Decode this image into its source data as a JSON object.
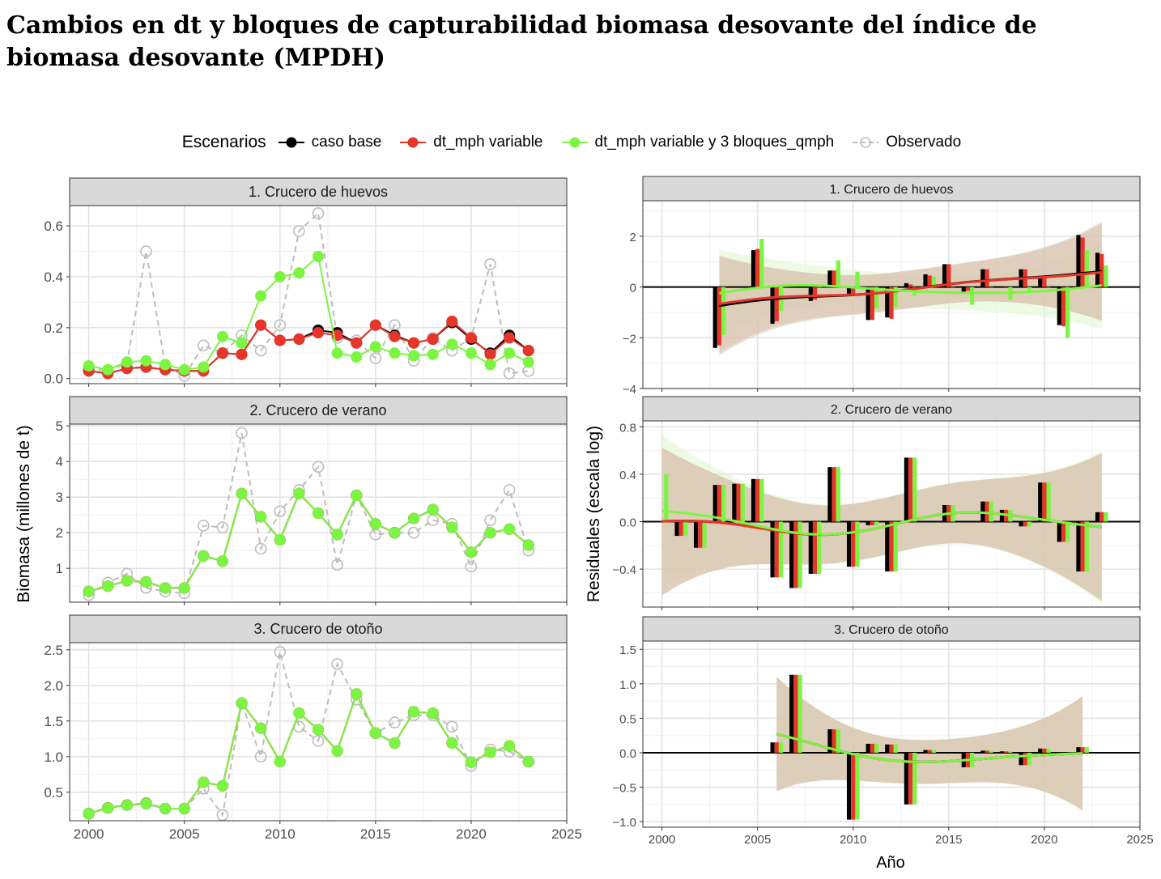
{
  "title": "Cambios en dt y bloques de capturabilidad biomasa desovante del índice de biomasa desovante (MPDH)",
  "legend": {
    "title": "Escenarios",
    "items": [
      {
        "label": "caso base",
        "color": "#000000"
      },
      {
        "label": "dt_mph variable",
        "color": "#e8352a"
      },
      {
        "label": "dt_mph variable y 3 bloques_qmph",
        "color": "#7cf542"
      },
      {
        "label": "Observado",
        "color": "#bdbdbd"
      }
    ]
  },
  "ylabel_left": "Biomasa (millones de t)",
  "ylabel_right": "Residuales (escala log)",
  "xlabel_right": "Año",
  "chart_data": [
    {
      "type": "line",
      "panel": "1. Crucero de huevos",
      "x": [
        2000,
        2001,
        2002,
        2003,
        2004,
        2005,
        2006,
        2007,
        2008,
        2009,
        2010,
        2011,
        2012,
        2013,
        2014,
        2015,
        2016,
        2017,
        2018,
        2019,
        2020,
        2021,
        2022,
        2023
      ],
      "xlim": [
        1999,
        2025
      ],
      "ylim": [
        -0.02,
        0.68
      ],
      "xticks": [
        "2000",
        "2005",
        "2010",
        "2015",
        "2020",
        "2025"
      ],
      "yticks": [
        "0.0",
        "0.2",
        "0.4",
        "0.6"
      ],
      "series": [
        {
          "name": "Observado",
          "values": [
            0.04,
            0.03,
            0.06,
            0.5,
            0.05,
            0.01,
            0.13,
            0.1,
            0.17,
            0.11,
            0.21,
            0.58,
            0.65,
            0.16,
            0.15,
            0.08,
            0.21,
            0.07,
            0.16,
            0.11,
            0.16,
            0.45,
            0.02,
            0.03
          ]
        },
        {
          "name": "caso base",
          "values": [
            0.03,
            0.02,
            0.04,
            0.045,
            0.035,
            0.03,
            0.03,
            0.1,
            0.095,
            0.21,
            0.15,
            0.155,
            0.19,
            0.18,
            0.14,
            0.21,
            0.17,
            0.14,
            0.155,
            0.22,
            0.155,
            0.1,
            0.17,
            0.11
          ]
        },
        {
          "name": "dt_mph variable",
          "values": [
            0.03,
            0.02,
            0.04,
            0.045,
            0.035,
            0.03,
            0.03,
            0.1,
            0.095,
            0.21,
            0.15,
            0.155,
            0.18,
            0.17,
            0.14,
            0.21,
            0.165,
            0.14,
            0.155,
            0.225,
            0.16,
            0.095,
            0.16,
            0.11
          ]
        },
        {
          "name": "dt_mph variable y 3 bloques_qmph",
          "values": [
            0.05,
            0.035,
            0.065,
            0.07,
            0.055,
            0.035,
            0.045,
            0.165,
            0.14,
            0.325,
            0.4,
            0.415,
            0.48,
            0.1,
            0.085,
            0.125,
            0.1,
            0.09,
            0.095,
            0.135,
            0.1,
            0.055,
            0.1,
            0.065
          ]
        }
      ]
    },
    {
      "type": "line",
      "panel": "2. Crucero de verano",
      "x": [
        2000,
        2001,
        2002,
        2003,
        2004,
        2005,
        2006,
        2007,
        2008,
        2009,
        2010,
        2011,
        2012,
        2013,
        2014,
        2015,
        2016,
        2017,
        2018,
        2019,
        2020,
        2021,
        2022,
        2023
      ],
      "xlim": [
        1999,
        2025
      ],
      "ylim": [
        0.05,
        5.05
      ],
      "xticks": [
        "2000",
        "2005",
        "2010",
        "2015",
        "2020",
        "2025"
      ],
      "yticks": [
        "1",
        "2",
        "3",
        "4",
        "5"
      ],
      "series": [
        {
          "name": "Observado",
          "values": [
            0.25,
            0.6,
            0.85,
            0.45,
            0.35,
            0.3,
            2.2,
            2.15,
            4.8,
            1.55,
            2.6,
            3.2,
            3.85,
            1.1,
            3.05,
            1.95,
            2.0,
            2.0,
            2.35,
            2.25,
            1.05,
            2.35,
            3.2,
            1.5
          ]
        },
        {
          "name": "caso base",
          "values": [
            0.35,
            0.5,
            0.65,
            0.62,
            0.45,
            0.45,
            1.35,
            1.2,
            3.1,
            2.45,
            1.8,
            3.1,
            2.55,
            1.95,
            3.05,
            2.25,
            2.0,
            2.4,
            2.65,
            2.15,
            1.45,
            2.0,
            2.1,
            1.65
          ]
        },
        {
          "name": "dt_mph variable",
          "values": [
            0.35,
            0.5,
            0.65,
            0.62,
            0.45,
            0.45,
            1.35,
            1.2,
            3.1,
            2.45,
            1.8,
            3.1,
            2.55,
            1.95,
            3.05,
            2.25,
            2.0,
            2.4,
            2.65,
            2.15,
            1.45,
            2.0,
            2.1,
            1.65
          ]
        },
        {
          "name": "dt_mph variable y 3 bloques_qmph",
          "values": [
            0.35,
            0.5,
            0.65,
            0.62,
            0.45,
            0.45,
            1.35,
            1.2,
            3.1,
            2.45,
            1.8,
            3.1,
            2.55,
            1.95,
            3.05,
            2.25,
            2.0,
            2.4,
            2.65,
            2.15,
            1.45,
            2.0,
            2.1,
            1.65
          ]
        }
      ]
    },
    {
      "type": "line",
      "panel": "3. Crucero de otoño",
      "x": [
        2000,
        2001,
        2002,
        2003,
        2004,
        2005,
        2006,
        2007,
        2008,
        2009,
        2010,
        2011,
        2012,
        2013,
        2014,
        2015,
        2016,
        2017,
        2018,
        2019,
        2020,
        2021,
        2022,
        2023
      ],
      "xlim": [
        1999,
        2025
      ],
      "ylim": [
        0.1,
        2.6
      ],
      "xticks": [
        "2000",
        "2005",
        "2010",
        "2015",
        "2020",
        "2025"
      ],
      "yticks": [
        "0.5",
        "1.0",
        "1.5",
        "2.0",
        "2.5"
      ],
      "series": [
        {
          "name": "Observado",
          "values": [
            0.2,
            0.28,
            0.32,
            0.35,
            0.27,
            0.27,
            0.55,
            0.18,
            1.75,
            1.0,
            2.47,
            1.42,
            1.22,
            2.3,
            1.8,
            1.33,
            1.48,
            1.58,
            1.58,
            1.42,
            0.87,
            1.1,
            1.07,
            0.93
          ]
        },
        {
          "name": "caso base",
          "values": [
            0.2,
            0.28,
            0.32,
            0.34,
            0.27,
            0.27,
            0.64,
            0.59,
            1.75,
            1.4,
            0.93,
            1.61,
            1.38,
            1.08,
            1.88,
            1.33,
            1.19,
            1.63,
            1.61,
            1.19,
            0.92,
            1.06,
            1.15,
            0.93
          ]
        },
        {
          "name": "dt_mph variable",
          "values": [
            0.2,
            0.28,
            0.32,
            0.34,
            0.27,
            0.27,
            0.64,
            0.59,
            1.75,
            1.4,
            0.93,
            1.61,
            1.38,
            1.08,
            1.88,
            1.33,
            1.19,
            1.63,
            1.61,
            1.19,
            0.92,
            1.06,
            1.15,
            0.93
          ]
        },
        {
          "name": "dt_mph variable y 3 bloques_qmph",
          "values": [
            0.2,
            0.28,
            0.32,
            0.34,
            0.27,
            0.27,
            0.64,
            0.59,
            1.75,
            1.4,
            0.93,
            1.61,
            1.38,
            1.08,
            1.88,
            1.33,
            1.19,
            1.63,
            1.61,
            1.19,
            0.92,
            1.06,
            1.15,
            0.93
          ]
        }
      ]
    },
    {
      "type": "bar",
      "panel": "1. Crucero de huevos",
      "x": [
        2003,
        2005,
        2006,
        2008,
        2009,
        2010,
        2011,
        2012,
        2013,
        2014,
        2015,
        2016,
        2017,
        2018,
        2019,
        2020,
        2021,
        2022,
        2023
      ],
      "xlim": [
        1999,
        2025
      ],
      "ylim": [
        -4,
        3.4
      ],
      "xticks": [
        "2000",
        "2005",
        "2010",
        "2015",
        "2020",
        "2025"
      ],
      "yticks": [
        "-4",
        "-2",
        "0",
        "2"
      ],
      "series": [
        {
          "name": "caso base",
          "values": [
            -2.4,
            1.45,
            -1.45,
            -0.55,
            0.65,
            -0.35,
            -1.3,
            -1.2,
            0.15,
            0.5,
            0.9,
            -0.2,
            0.7,
            0.0,
            0.7,
            0.4,
            -1.5,
            2.05,
            1.35
          ]
        },
        {
          "name": "dt_mph variable",
          "values": [
            -2.3,
            1.5,
            -1.35,
            -0.5,
            0.65,
            -0.3,
            -1.3,
            -1.25,
            0.1,
            0.45,
            0.9,
            -0.15,
            0.7,
            0.0,
            0.7,
            0.4,
            -1.55,
            1.95,
            1.3
          ]
        },
        {
          "name": "dt_mph variable y 3 bloques_qmph",
          "values": [
            -1.9,
            1.9,
            -0.95,
            0.0,
            1.05,
            0.6,
            -0.85,
            -0.8,
            -0.35,
            0.4,
            0.0,
            -0.7,
            0.0,
            -0.5,
            -0.2,
            0.0,
            -2.0,
            1.45,
            0.85
          ]
        }
      ]
    },
    {
      "type": "bar",
      "panel": "2. Crucero de verano",
      "x": [
        2000,
        2001,
        2002,
        2003,
        2004,
        2005,
        2006,
        2007,
        2008,
        2009,
        2010,
        2011,
        2012,
        2013,
        2015,
        2017,
        2018,
        2019,
        2020,
        2021,
        2022,
        2023
      ],
      "xlim": [
        1999,
        2025
      ],
      "ylim": [
        -0.72,
        0.85
      ],
      "xticks": [
        "2000",
        "2005",
        "2010",
        "2015",
        "2020",
        "2025"
      ],
      "yticks": [
        "-0.4",
        "0.0",
        "0.4",
        "0.8"
      ],
      "series": [
        {
          "name": "caso base",
          "values": [
            0.0,
            -0.12,
            -0.22,
            0.31,
            0.32,
            0.36,
            -0.47,
            -0.56,
            -0.44,
            0.46,
            -0.38,
            -0.03,
            -0.42,
            0.54,
            0.14,
            0.17,
            0.1,
            -0.04,
            0.33,
            -0.17,
            -0.42,
            0.08
          ]
        },
        {
          "name": "dt_mph variable",
          "values": [
            0.0,
            -0.12,
            -0.22,
            0.31,
            0.32,
            0.36,
            -0.47,
            -0.56,
            -0.44,
            0.46,
            -0.38,
            -0.03,
            -0.42,
            0.54,
            0.14,
            0.17,
            0.1,
            -0.04,
            0.33,
            -0.17,
            -0.42,
            0.08
          ]
        },
        {
          "name": "dt_mph variable y 3 bloques_qmph",
          "values": [
            0.4,
            -0.12,
            -0.22,
            0.31,
            0.32,
            0.36,
            -0.47,
            -0.56,
            -0.44,
            0.46,
            -0.38,
            -0.03,
            -0.42,
            0.54,
            0.14,
            0.17,
            0.1,
            -0.04,
            0.33,
            -0.17,
            -0.42,
            0.08
          ]
        }
      ]
    },
    {
      "type": "bar",
      "panel": "3. Crucero de otoño",
      "x": [
        2006,
        2007,
        2009,
        2010,
        2011,
        2012,
        2013,
        2014,
        2016,
        2017,
        2018,
        2019,
        2020,
        2021,
        2022
      ],
      "xlim": [
        1999,
        2025
      ],
      "ylim": [
        -1.08,
        1.62
      ],
      "xticks": [
        "2000",
        "2005",
        "2010",
        "2015",
        "2020",
        "2025"
      ],
      "yticks": [
        "-1.0",
        "-0.5",
        "0.0",
        "0.5",
        "1.0",
        "1.5"
      ],
      "series": [
        {
          "name": "caso base",
          "values": [
            0.15,
            1.13,
            0.34,
            -0.97,
            0.13,
            0.12,
            -0.75,
            0.04,
            -0.21,
            0.03,
            0.02,
            -0.18,
            0.06,
            -0.02,
            0.08
          ]
        },
        {
          "name": "dt_mph variable",
          "values": [
            0.15,
            1.13,
            0.34,
            -0.97,
            0.13,
            0.12,
            -0.75,
            0.04,
            -0.21,
            0.03,
            0.02,
            -0.18,
            0.06,
            -0.02,
            0.08
          ]
        },
        {
          "name": "dt_mph variable y 3 bloques_qmph",
          "values": [
            0.15,
            1.13,
            0.34,
            -0.97,
            0.13,
            0.12,
            -0.75,
            0.04,
            -0.21,
            0.03,
            0.02,
            -0.18,
            0.06,
            -0.02,
            0.08
          ]
        }
      ]
    }
  ]
}
